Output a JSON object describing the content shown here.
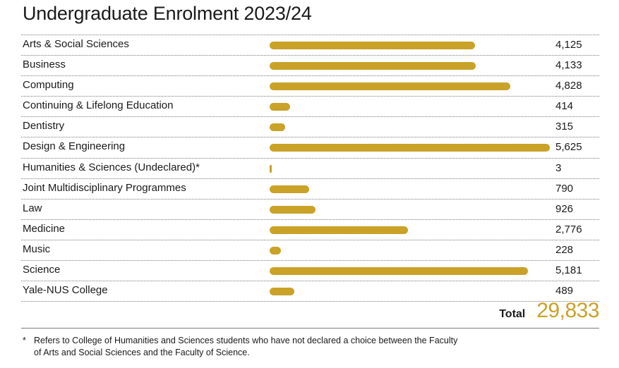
{
  "page": {
    "title": "Undergraduate Enrolment 2023/24"
  },
  "chart_data": {
    "type": "bar",
    "orientation": "horizontal",
    "title": "Undergraduate Enrolment 2023/24",
    "categories": [
      "Arts & Social Sciences",
      "Business",
      "Computing",
      "Continuing & Lifelong Education",
      "Dentistry",
      "Design & Engineering",
      "Humanities & Sciences (Undeclared)*",
      "Joint Multidisciplinary Programmes",
      "Law",
      "Medicine",
      "Music",
      "Science",
      "Yale-NUS College"
    ],
    "values": [
      4125,
      4133,
      4828,
      414,
      315,
      5625,
      3,
      790,
      926,
      2776,
      228,
      5181,
      489
    ],
    "value_labels": [
      "4,125",
      "4,133",
      "4,828",
      "414",
      "315",
      "5,625",
      "3",
      "790",
      "926",
      "2,776",
      "228",
      "5,181",
      "489"
    ],
    "xlim": [
      0,
      5625
    ],
    "grid": false,
    "bar_color": "#c9a227"
  },
  "total": {
    "label": "Total",
    "value": "29,833"
  },
  "footnote": {
    "mark": "*",
    "text": "Refers to College of Humanities and Sciences students who have not declared a choice between the Faculty of Arts and Social Sciences and the Faculty of Science."
  }
}
